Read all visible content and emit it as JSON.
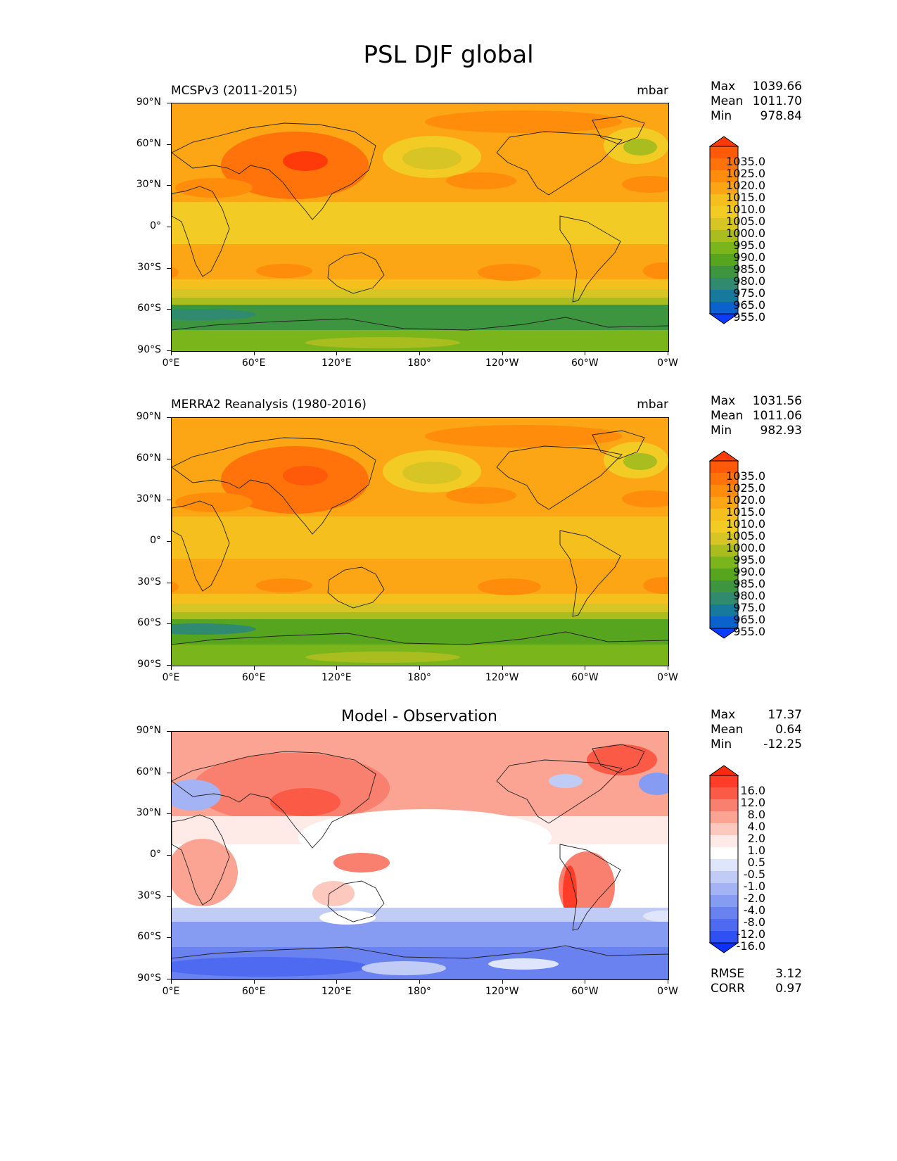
{
  "title": "PSL DJF global",
  "lat_ticks": [
    "90°N",
    "60°N",
    "30°N",
    "0°",
    "30°S",
    "60°S",
    "90°S"
  ],
  "lon_ticks": [
    "0°E",
    "60°E",
    "120°E",
    "180°",
    "120°W",
    "60°W",
    "0°W"
  ],
  "panels": [
    {
      "title_left": "MCSPv3 (2011-2015)",
      "title_right": "mbar",
      "title_center": "",
      "stats": [
        {
          "k": "Max",
          "v": "1039.66"
        },
        {
          "k": "Mean",
          "v": "1011.70"
        },
        {
          "k": "Min",
          "v": "978.84"
        }
      ],
      "colorbar": [
        "1035.0",
        "1025.0",
        "1020.0",
        "1015.0",
        "1010.0",
        "1005.0",
        "1000.0",
        "995.0",
        "990.0",
        "985.0",
        "980.0",
        "975.0",
        "965.0",
        "955.0"
      ],
      "extra": []
    },
    {
      "title_left": "MERRA2 Reanalysis (1980-2016)",
      "title_right": "mbar",
      "title_center": "",
      "stats": [
        {
          "k": "Max",
          "v": "1031.56"
        },
        {
          "k": "Mean",
          "v": "1011.06"
        },
        {
          "k": "Min",
          "v": "982.93"
        }
      ],
      "colorbar": [
        "1035.0",
        "1025.0",
        "1020.0",
        "1015.0",
        "1010.0",
        "1005.0",
        "1000.0",
        "995.0",
        "990.0",
        "985.0",
        "980.0",
        "975.0",
        "965.0",
        "955.0"
      ],
      "extra": []
    },
    {
      "title_left": "",
      "title_right": "",
      "title_center": "Model - Observation",
      "stats": [
        {
          "k": "Max",
          "v": "17.37"
        },
        {
          "k": "Mean",
          "v": "0.64"
        },
        {
          "k": "Min",
          "v": "-12.25"
        }
      ],
      "colorbar": [
        "16.0",
        "12.0",
        "8.0",
        "4.0",
        "2.0",
        "1.0",
        "0.5",
        "-0.5",
        "-1.0",
        "-2.0",
        "-4.0",
        "-8.0",
        "-12.0",
        "-16.0"
      ],
      "extra": [
        {
          "k": "RMSE",
          "v": "3.12"
        },
        {
          "k": "CORR",
          "v": "0.97"
        }
      ]
    }
  ],
  "colors": {
    "psl_scale": [
      "#ff3a0a",
      "#ff5a0a",
      "#ff730a",
      "#ff8c0a",
      "#fca515",
      "#f5c01e",
      "#f2cc24",
      "#d6c525",
      "#a9bd1f",
      "#7ab61b",
      "#57a51f",
      "#3e9540",
      "#2f8a70",
      "#17799b",
      "#0c62cc",
      "#0a3cff"
    ],
    "diff_scale": [
      "#ff2a0a",
      "#ff3c28",
      "#fb5a46",
      "#f97f6e",
      "#fca493",
      "#fdc8bd",
      "#feeae6",
      "#ffffff",
      "#dfe6fb",
      "#c1ccf6",
      "#a3b3f3",
      "#869bf2",
      "#6a82f0",
      "#4d6af1",
      "#2f51f4",
      "#0a30ff"
    ]
  }
}
